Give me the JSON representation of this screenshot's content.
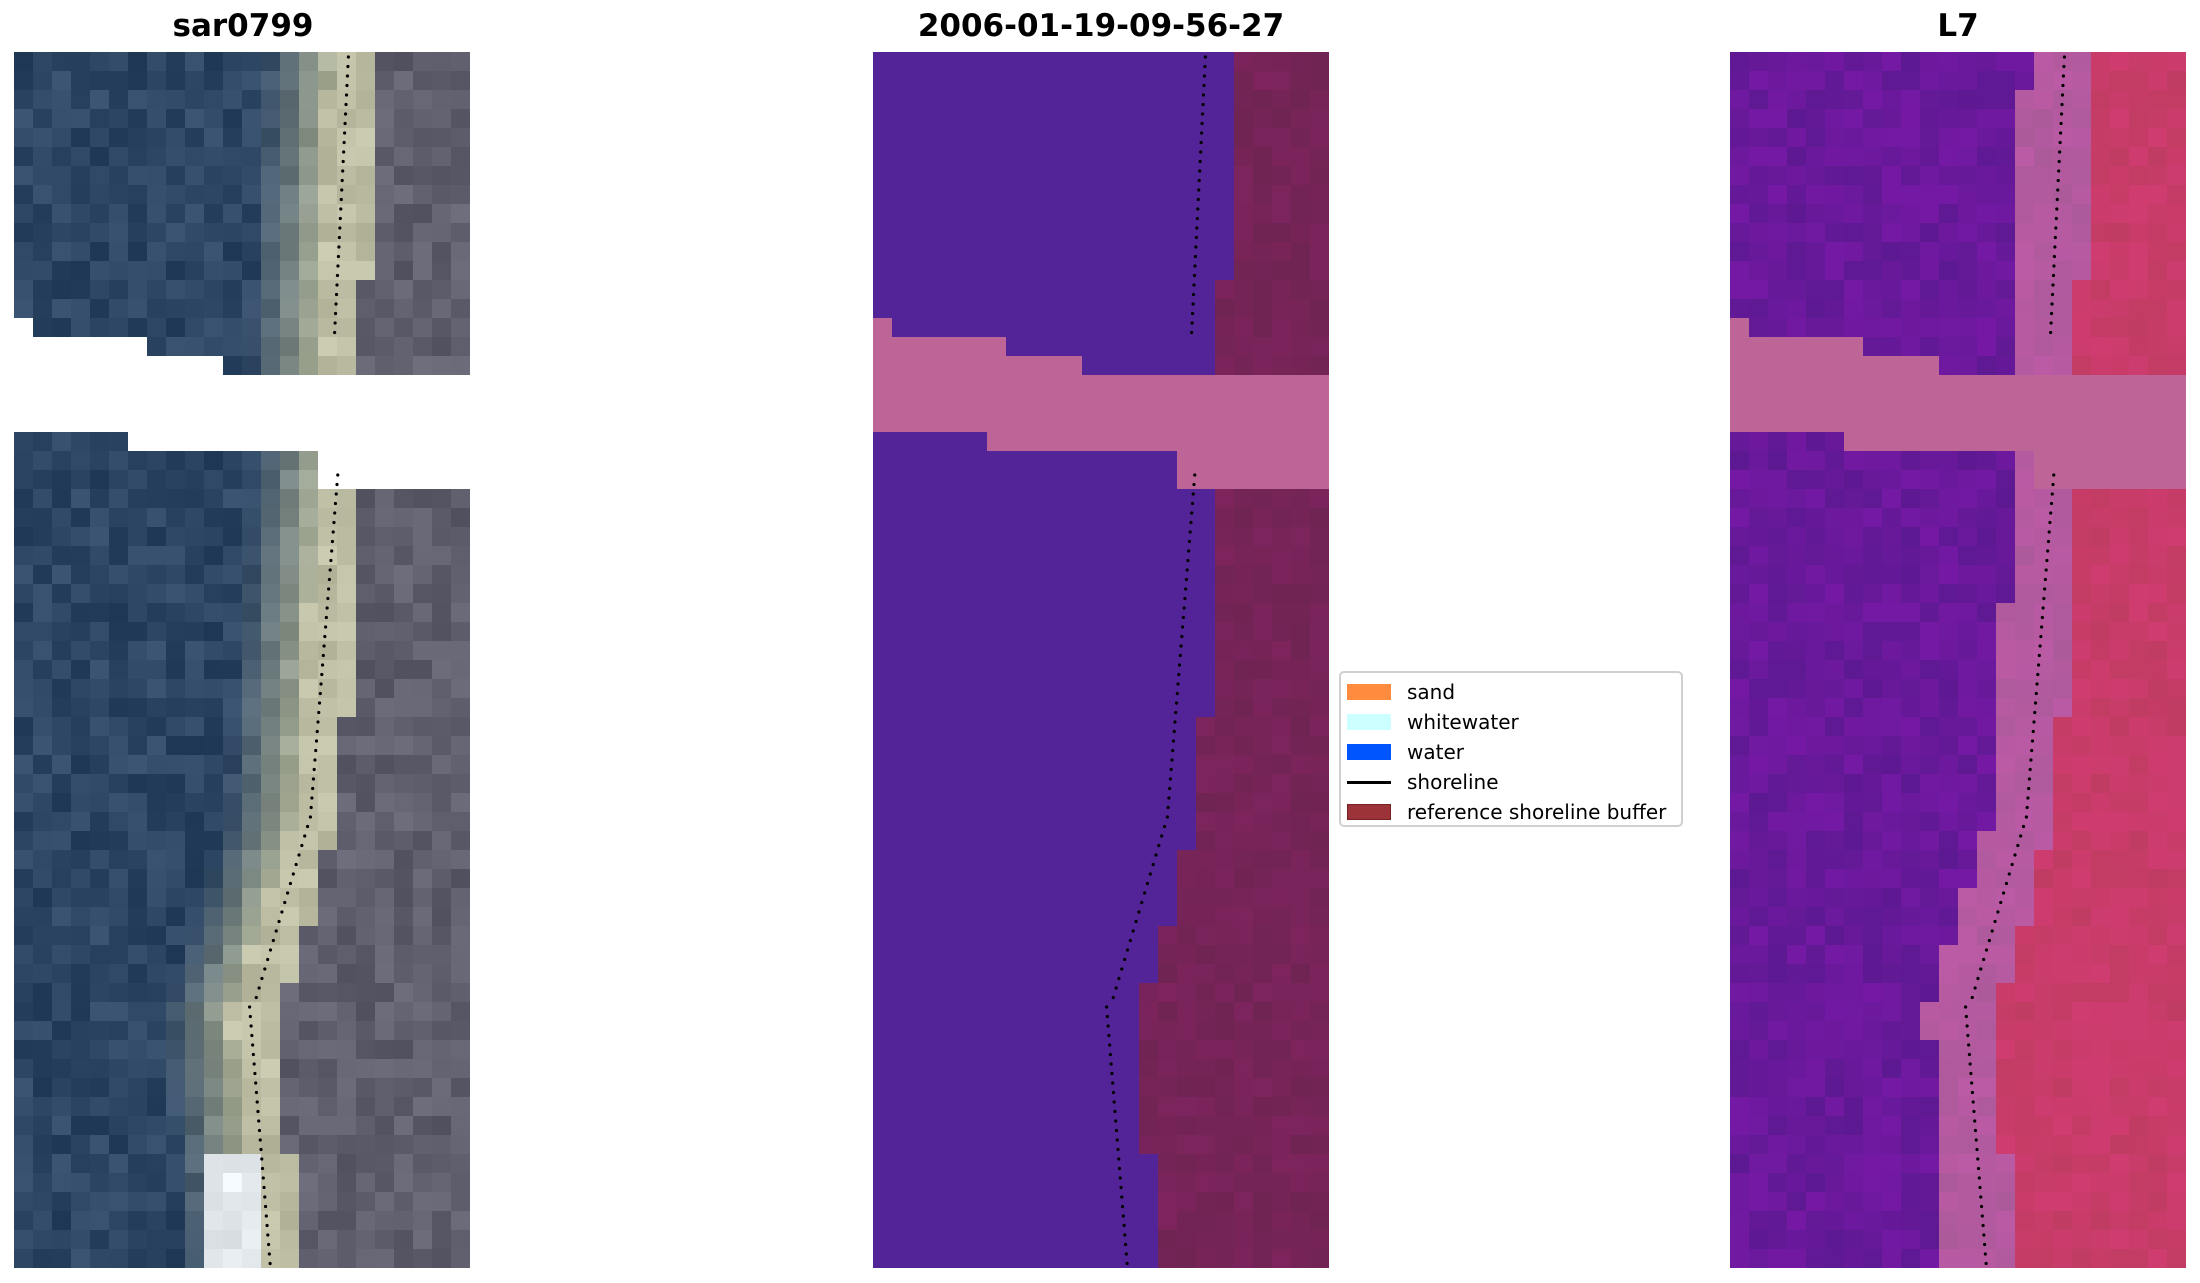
{
  "panels": [
    {
      "title": "sar0799",
      "kind": "rgb"
    },
    {
      "title": "2006-01-19-09-56-27",
      "kind": "classified"
    },
    {
      "title": "L7",
      "kind": "overlay"
    }
  ],
  "legend": {
    "items": [
      {
        "label": "sand",
        "color": "#ff8c3e"
      },
      {
        "label": "whitewater",
        "color": "#ccffff"
      },
      {
        "label": "water",
        "color": "#0055ff"
      },
      {
        "label": "shoreline",
        "color": "#000000"
      },
      {
        "label": "reference shoreline buffer",
        "color": "#9b3338"
      }
    ]
  }
}
